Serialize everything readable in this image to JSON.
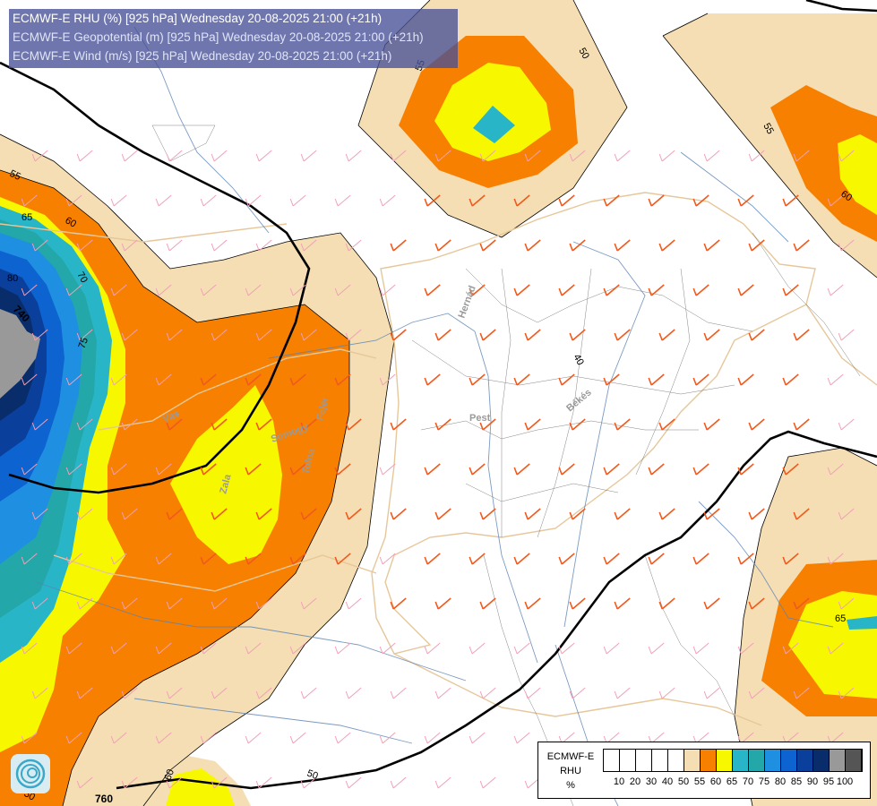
{
  "title": {
    "line1": "ECMWF-E RHU (%) [925 hPa] Wednesday 20-08-2025 21:00 (+21h)",
    "line2": "ECMWF-E Geopotential (m) [925 hPa] Wednesday 20-08-2025 21:00 (+21h)",
    "line3": "ECMWF-E Wind (m/s) [925 hPa] Wednesday 20-08-2025 21:00 (+21h)"
  },
  "colors": {
    "rh_50_55": "#f5deb3",
    "rh_55_60": "#f88000",
    "rh_60_65": "#f7f700",
    "rh_65_70": "#29b5c8",
    "rh_70_75": "#23a7a8",
    "rh_75_80": "#1f8fe1",
    "rh_80_85": "#0d63cf",
    "rh_85_90": "#0a3f9c",
    "rh_90_95": "#082d6a",
    "rh_95_100": "#999999",
    "wind_barb_orange": "#f05a1e",
    "wind_barb_pink": "#f0a0b8",
    "border": "#e6c79a",
    "river": "#5a82b4",
    "geopotential_line": "#000000"
  },
  "contour_labels": {
    "rh_55_nw": "55",
    "rh_60_w": "60",
    "rh_65_w": "65",
    "rh_70_w": "70",
    "rh_75_w": "75",
    "rh_80_w": "80",
    "rh_55_n": "55",
    "rh_50_n": "50",
    "rh_55_ne": "55",
    "rh_60_ne": "60",
    "rh_65_se": "65",
    "rh_50_s": "50",
    "rh_60_s": "60",
    "rh_50_sw": "50",
    "rh_40_center": "40"
  },
  "geopotential_labels": {
    "nw": "740",
    "s": "760"
  },
  "place_labels": {
    "hernad": "Hernád",
    "bekes": "Békés",
    "pest": "Pest",
    "vas": "Vas",
    "zala": "Zala",
    "somogy": "Somogy",
    "tolna": "Tolna",
    "fejer": "Fejér"
  },
  "legend": {
    "model": "ECMWF-E",
    "variable": "RHU",
    "unit": "%",
    "swatches": [
      "#ffffff",
      "#ffffff",
      "#ffffff",
      "#ffffff",
      "#ffffff",
      "#f5deb3",
      "#f88000",
      "#f7f700",
      "#29b5c8",
      "#23a7a8",
      "#1f8fe1",
      "#0d63cf",
      "#0a3f9c",
      "#082d6a",
      "#999999",
      "#555555"
    ],
    "ticks": [
      "10",
      "20",
      "30",
      "40",
      "50",
      "55",
      "60",
      "65",
      "70",
      "75",
      "80",
      "85",
      "90",
      "95",
      "100"
    ]
  },
  "logo_icon": "ecmwf-spiral-logo"
}
